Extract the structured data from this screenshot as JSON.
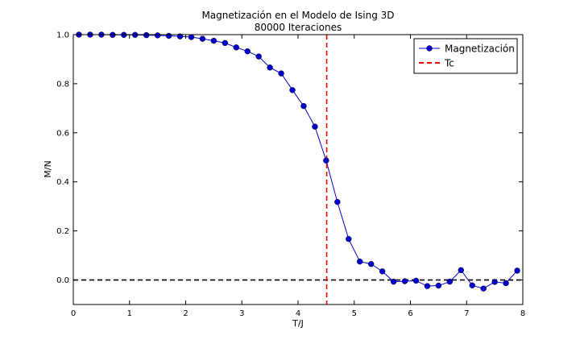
{
  "chart_data": {
    "type": "line",
    "title_lines": [
      "Magnetización en el Modelo de Ising 3D",
      "80000 Iteraciones"
    ],
    "xlabel": "T/J",
    "ylabel": "M/N",
    "xlim": [
      0,
      8
    ],
    "ylim": [
      -0.1,
      1.0
    ],
    "xticks": [
      0,
      1,
      2,
      3,
      4,
      5,
      6,
      7,
      8
    ],
    "yticks": [
      0.0,
      0.2,
      0.4,
      0.6,
      0.8,
      1.0
    ],
    "xtick_labels": [
      "0",
      "1",
      "2",
      "3",
      "4",
      "5",
      "6",
      "7",
      "8"
    ],
    "ytick_labels": [
      "0.0",
      "0.2",
      "0.4",
      "0.6",
      "0.8",
      "1.0"
    ],
    "grid": false,
    "legend_position": "top-right",
    "series": [
      {
        "name": "Magnetización",
        "color": "#0000cc",
        "marker": "circle",
        "x": [
          0.1,
          0.3,
          0.5,
          0.7,
          0.9,
          1.1,
          1.3,
          1.5,
          1.7,
          1.9,
          2.1,
          2.3,
          2.5,
          2.7,
          2.9,
          3.1,
          3.3,
          3.5,
          3.7,
          3.9,
          4.1,
          4.3,
          4.5,
          4.7,
          4.9,
          5.1,
          5.3,
          5.5,
          5.7,
          5.9,
          6.1,
          6.3,
          6.5,
          6.7,
          6.9,
          7.1,
          7.3,
          7.5,
          7.7,
          7.9
        ],
        "y": [
          1.0,
          1.0,
          1.0,
          0.999,
          0.999,
          0.999,
          0.998,
          0.997,
          0.995,
          0.993,
          0.99,
          0.983,
          0.975,
          0.966,
          0.948,
          0.932,
          0.911,
          0.866,
          0.842,
          0.774,
          0.709,
          0.625,
          0.487,
          0.318,
          0.167,
          0.075,
          0.065,
          0.035,
          -0.007,
          -0.005,
          -0.003,
          -0.025,
          -0.023,
          -0.007,
          0.04,
          -0.022,
          -0.035,
          -0.008,
          -0.013,
          0.038
        ]
      },
      {
        "name": "Tc",
        "color": "#ff0000",
        "style": "dashed",
        "x_value": 4.51
      }
    ],
    "reference_lines": [
      {
        "y_value": 0.0,
        "color": "#000000",
        "style": "dashed"
      }
    ]
  }
}
